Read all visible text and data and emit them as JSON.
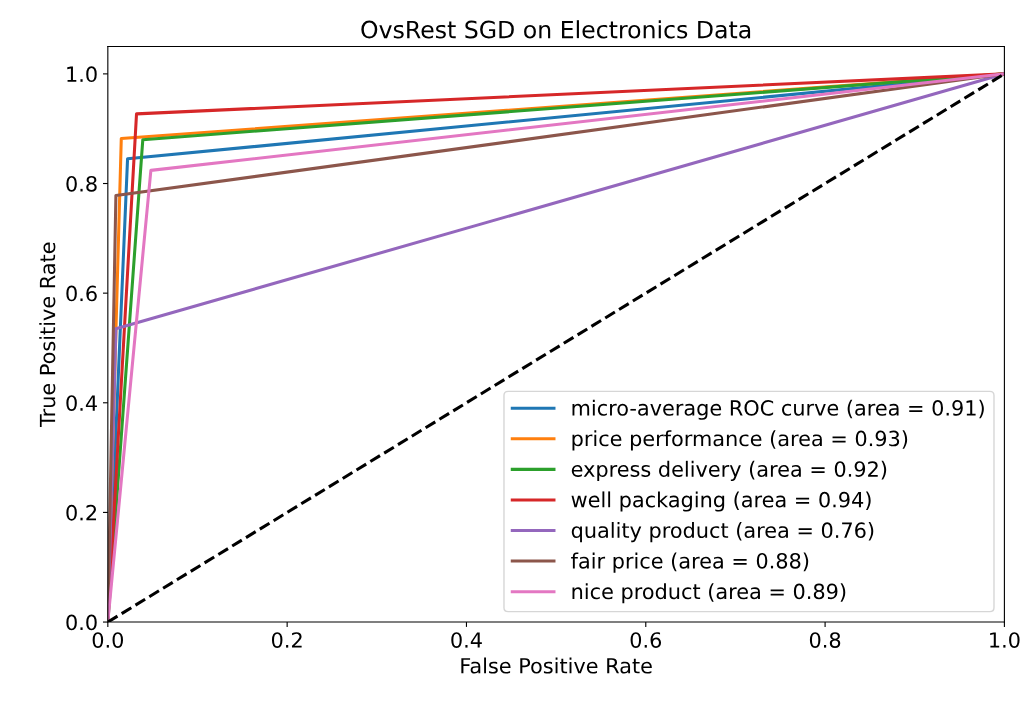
{
  "chart_data": {
    "type": "line",
    "title": "OvsRest SGD on Electronics Data",
    "xlabel": "False Positive Rate",
    "ylabel": "True Positive Rate",
    "xlim": [
      0.0,
      1.0
    ],
    "ylim": [
      0.0,
      1.05
    ],
    "xticks": [
      {
        "value": 0,
        "label": "0.0"
      },
      0.2,
      0.4,
      0.6,
      0.8,
      {
        "value": 1,
        "label": "1.0"
      }
    ],
    "yticks": [
      {
        "value": 0,
        "label": "0.0"
      },
      0.2,
      0.4,
      0.6,
      0.8,
      {
        "value": 1,
        "label": "1.0"
      }
    ],
    "grid": false,
    "legend": "bottom right",
    "marker": "none",
    "series": [
      {
        "name": "micro-average ROC curve (area = 0.91)",
        "color": "#1f77b4",
        "x": [
          0,
          0.022,
          1
        ],
        "values": [
          0,
          0.845,
          1
        ]
      },
      {
        "name": "price performance (area = 0.93)",
        "color": "#ff7f0e",
        "x": [
          0,
          0.015,
          1
        ],
        "values": [
          0,
          0.882,
          1
        ]
      },
      {
        "name": "express delivery (area = 0.92)",
        "color": "#2ca02c",
        "x": [
          0,
          0.039,
          1
        ],
        "values": [
          0,
          0.88,
          1
        ]
      },
      {
        "name": "well packaging (area = 0.94)",
        "color": "#d62728",
        "x": [
          0,
          0.032,
          1
        ],
        "values": [
          0,
          0.927,
          1
        ]
      },
      {
        "name": "quality product (area = 0.76)",
        "color": "#9467bd",
        "x": [
          0,
          0.009,
          1
        ],
        "values": [
          0,
          0.535,
          1
        ]
      },
      {
        "name": "fair price (area = 0.88)",
        "color": "#8c564b",
        "x": [
          0,
          0.009,
          1
        ],
        "values": [
          0,
          0.778,
          1
        ]
      },
      {
        "name": "nice product (area = 0.89)",
        "color": "#e377c2",
        "x": [
          0,
          0.048,
          1
        ],
        "values": [
          0,
          0.824,
          1
        ]
      },
      {
        "color": "#000000",
        "line_style": "dashed",
        "x": [
          0,
          1
        ],
        "values": [
          0,
          1
        ]
      }
    ]
  }
}
